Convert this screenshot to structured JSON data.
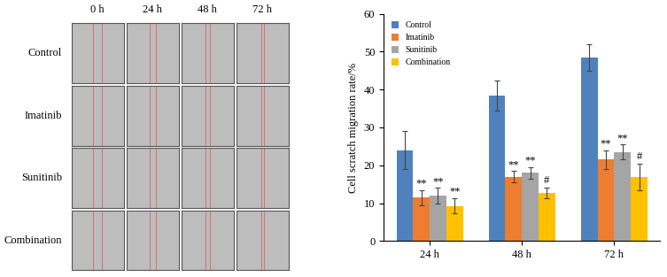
{
  "image_panel": {
    "columns": [
      "0 h",
      "24 h",
      "48 h",
      "72 h"
    ],
    "rows": [
      "Control",
      "Imatinib",
      "Sunitinib",
      "Combination"
    ]
  },
  "chart_data": {
    "type": "bar",
    "y_label": "Cell scratch migration rate/%",
    "categories": [
      "24 h",
      "48 h",
      "72 h"
    ],
    "series": [
      {
        "name": "Control",
        "color": "#4f81bd",
        "values": [
          24,
          38.5,
          48.5
        ],
        "errors": [
          5,
          4,
          3.5
        ],
        "annotations": [
          null,
          null,
          null
        ]
      },
      {
        "name": "Imatinib",
        "color": "#ed7d31",
        "values": [
          11.5,
          17,
          21.5
        ],
        "errors": [
          2,
          1.5,
          2.5
        ],
        "annotations": [
          "**",
          "**",
          "**"
        ]
      },
      {
        "name": "Sunitinib",
        "color": "#a5a5a5",
        "values": [
          12,
          18,
          23.5
        ],
        "errors": [
          2,
          1.5,
          2
        ],
        "annotations": [
          "**",
          "**",
          "**"
        ]
      },
      {
        "name": "Combination",
        "color": "#ffc000",
        "values": [
          9.3,
          12.7,
          17
        ],
        "errors": [
          2,
          1.5,
          3.5
        ],
        "annotations": [
          "**",
          "#",
          "#"
        ]
      }
    ],
    "ylim": [
      0,
      60
    ],
    "yticks": [
      0,
      10,
      20,
      30,
      40,
      50,
      60
    ],
    "legend": "upper left",
    "grid": false
  }
}
